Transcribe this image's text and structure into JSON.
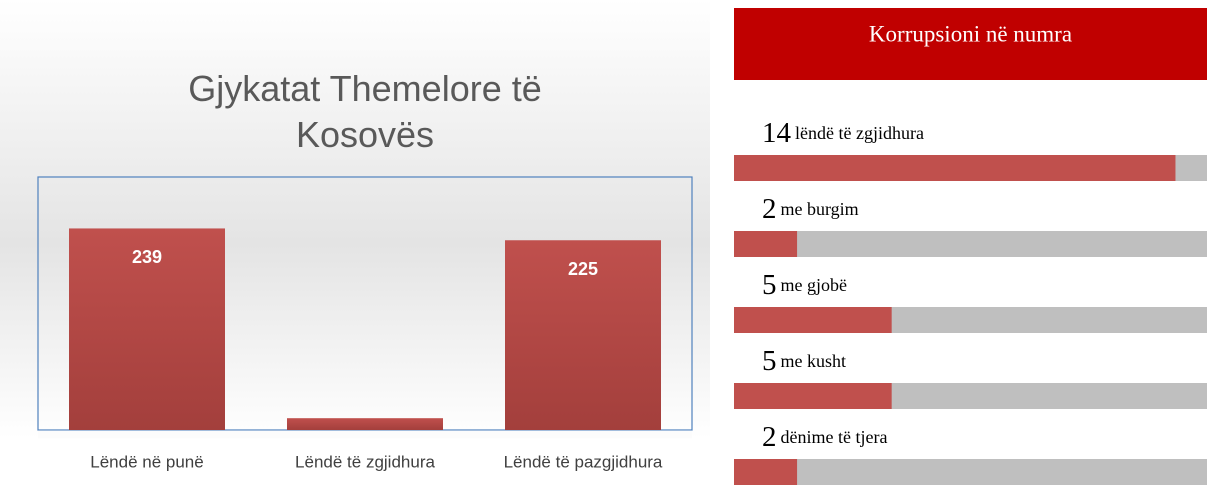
{
  "chart_data": [
    {
      "type": "bar",
      "title": "Gjykatat Themelore të Kosovës",
      "categories": [
        "Lëndë në punë",
        "Lëndë të zgjidhura",
        "Lëndë të pazgjidhura"
      ],
      "values": [
        239,
        14,
        225
      ],
      "color": "#c0504d",
      "ylim": [
        0,
        300
      ]
    },
    {
      "type": "progress",
      "title": "Korrupsioni në numra",
      "categories": [
        "lëndë të zgjidhura",
        "me burgim",
        "me gjobë",
        "me kusht",
        "dënime të tjera"
      ],
      "values": [
        14,
        2,
        5,
        5,
        2
      ],
      "color": "#c0504d",
      "track_color": "#bfbfbf",
      "header_color": "#c00000",
      "xlim": [
        0,
        15
      ]
    }
  ]
}
